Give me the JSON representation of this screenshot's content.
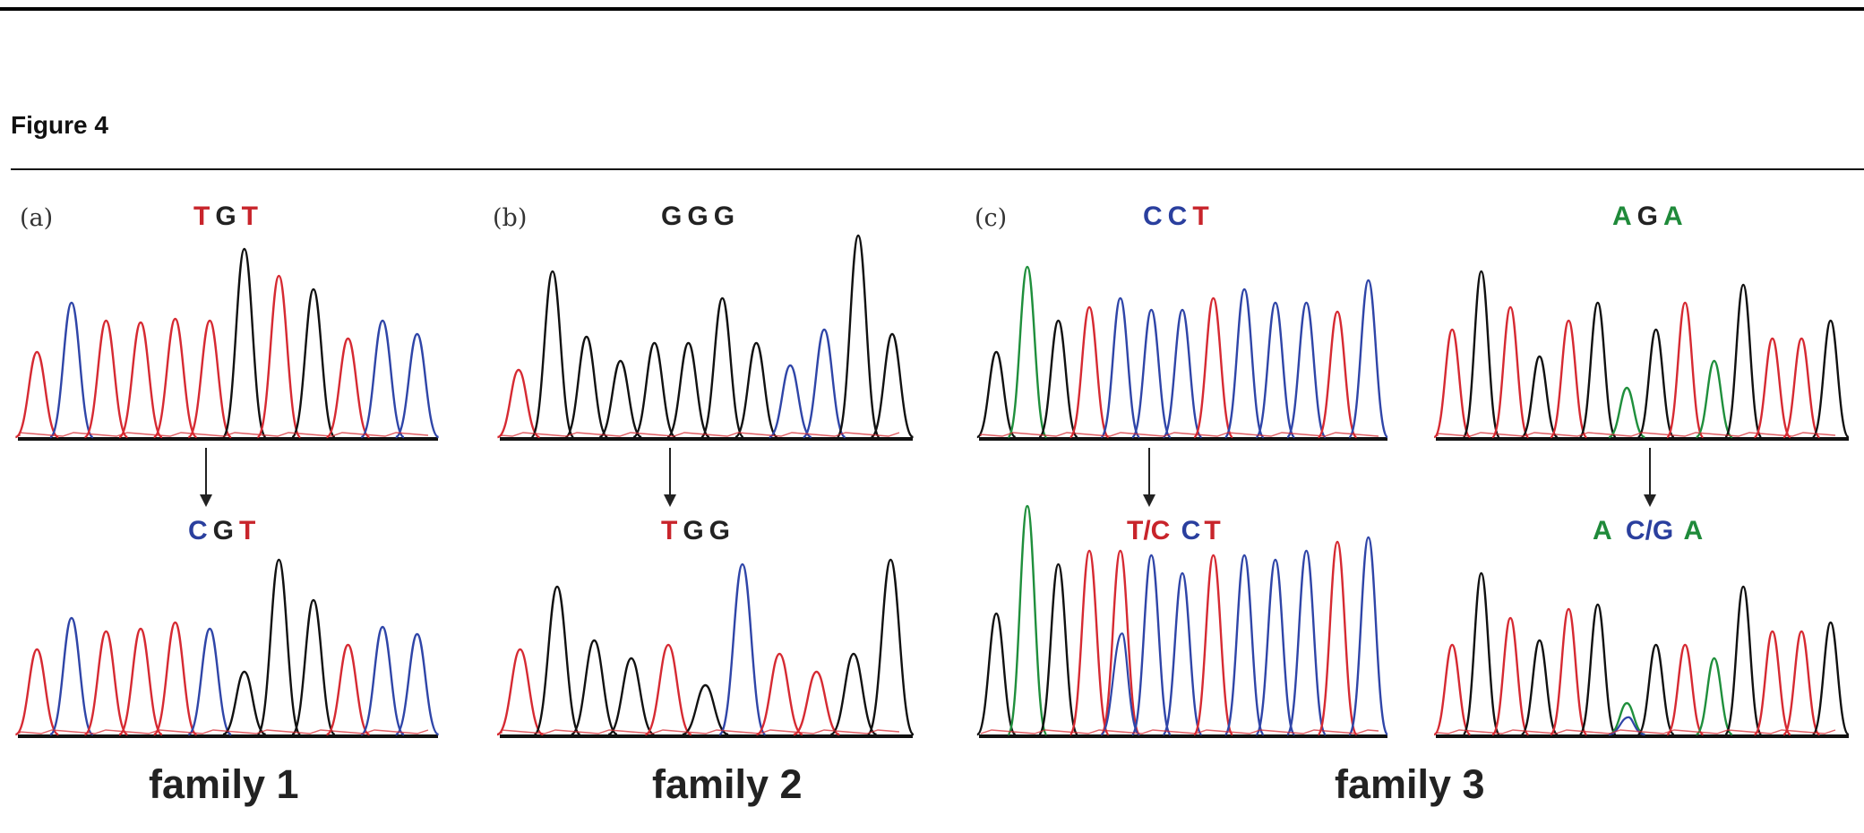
{
  "figure_title": "Figure 4",
  "colors": {
    "T": "#d62a32",
    "C": "#2f45a8",
    "G": "#111111",
    "A": "#1f8f3c"
  },
  "panels": [
    {
      "letter": "(a)",
      "family": "family 1",
      "top_seq": [
        {
          "b": "T",
          "cls": "t"
        },
        {
          "b": "G",
          "cls": "g"
        },
        {
          "b": "T",
          "cls": "t"
        }
      ],
      "bottom_seq": [
        {
          "b": "C",
          "cls": "c"
        },
        {
          "b": "G",
          "cls": "g"
        },
        {
          "b": "T",
          "cls": "t"
        }
      ]
    },
    {
      "letter": "(b)",
      "family": "family 2",
      "top_seq": [
        {
          "b": "G",
          "cls": "g"
        },
        {
          "b": "G",
          "cls": "g"
        },
        {
          "b": "G",
          "cls": "g"
        }
      ],
      "bottom_seq": [
        {
          "b": "T",
          "cls": "t"
        },
        {
          "b": "G",
          "cls": "g"
        },
        {
          "b": "G",
          "cls": "g"
        }
      ]
    },
    {
      "letter": "(c)",
      "family": "family 3",
      "top_seq": [
        {
          "b": "C",
          "cls": "c"
        },
        {
          "b": "C",
          "cls": "c"
        },
        {
          "b": "T",
          "cls": "t"
        }
      ],
      "bottom_seq": [
        {
          "b": "T/C",
          "cls": "t"
        },
        {
          "b": "C",
          "cls": "c"
        },
        {
          "b": "T",
          "cls": "t"
        }
      ],
      "top_seq_2": [
        {
          "b": "A",
          "cls": "a"
        },
        {
          "b": "G",
          "cls": "g"
        },
        {
          "b": "A",
          "cls": "a"
        }
      ],
      "bottom_seq_2": [
        {
          "b": "A",
          "cls": "a"
        },
        {
          "b": "C/G",
          "cls": "c"
        },
        {
          "b": "A",
          "cls": "a"
        }
      ]
    }
  ],
  "traces": [
    {
      "id": "a-top",
      "peaks": "TCTTTTGTGTCC",
      "mut_index": 5,
      "mut_alt": ""
    },
    {
      "id": "a-bottom",
      "peaks": "TCTTTCGGGTCC",
      "mut_index": 5,
      "mut_alt": ""
    },
    {
      "id": "b-top",
      "peaks": "TGGGGGGGCCGG",
      "mut_index": 4,
      "mut_alt": ""
    },
    {
      "id": "b-bottom",
      "peaks": "TGGGTGCTTGG",
      "mut_index": 4,
      "mut_alt": ""
    },
    {
      "id": "c1-top",
      "peaks": "GAGTCCCTCCCTC",
      "mut_index": 4,
      "mut_alt": ""
    },
    {
      "id": "c1-bottom",
      "peaks": "GAGTTCCTCCCTC",
      "mut_index": 4,
      "mut_alt": "C"
    },
    {
      "id": "c2-top",
      "peaks": "TGTGTGAGTAGTTG",
      "mut_index": 6,
      "mut_alt": ""
    },
    {
      "id": "c2-bottom",
      "peaks": "TGTGTGAGTAGTTG",
      "mut_index": 6,
      "mut_alt": "C"
    }
  ]
}
